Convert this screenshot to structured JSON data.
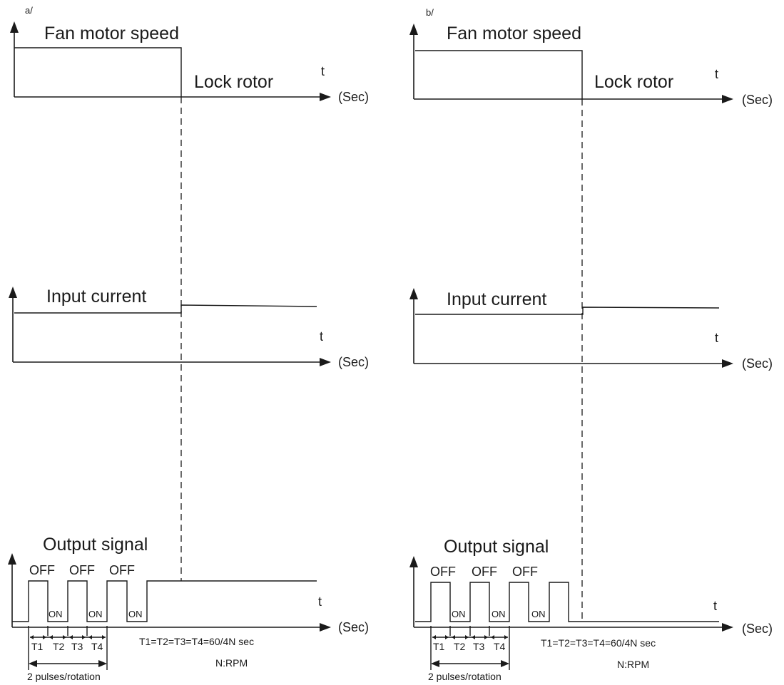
{
  "panels": [
    {
      "id": "a",
      "tag": "a/",
      "speed": {
        "title": "Fan motor speed",
        "event": "Lock rotor",
        "axis_t": "t",
        "axis_unit": "(Sec)"
      },
      "current": {
        "title": "Input current",
        "axis_t": "t",
        "axis_unit": "(Sec)"
      },
      "output": {
        "title": "Output signal",
        "axis_t": "t",
        "axis_unit": "(Sec)",
        "off_labels": [
          "OFF",
          "OFF",
          "OFF"
        ],
        "on_labels": [
          "ON",
          "ON",
          "ON"
        ],
        "periods": [
          "T1",
          "T2",
          "T3",
          "T4"
        ],
        "pulses_label": "2 pulses/rotation",
        "formula": "T1=T2=T3=T4=60/4N  sec",
        "rpm_note": "N:RPM",
        "after_lock_state": "high"
      }
    },
    {
      "id": "b",
      "tag": "b/",
      "speed": {
        "title": "Fan motor speed",
        "event": "Lock rotor",
        "axis_t": "t",
        "axis_unit": "(Sec)"
      },
      "current": {
        "title": "Input current",
        "axis_t": "t",
        "axis_unit": "(Sec)"
      },
      "output": {
        "title": "Output signal",
        "axis_t": "t",
        "axis_unit": "(Sec)",
        "off_labels": [
          "OFF",
          "OFF",
          "OFF"
        ],
        "on_labels": [
          "ON",
          "ON",
          "ON"
        ],
        "periods": [
          "T1",
          "T2",
          "T3",
          "T4"
        ],
        "pulses_label": "2 pulses/rotation",
        "formula": "T1=T2=T3=T4=60/4N sec",
        "rpm_note": "N:RPM",
        "after_lock_state": "low"
      }
    }
  ]
}
